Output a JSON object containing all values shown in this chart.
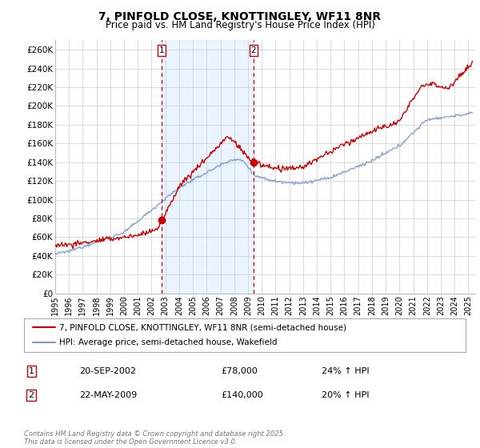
{
  "title": "7, PINFOLD CLOSE, KNOTTINGLEY, WF11 8NR",
  "subtitle": "Price paid vs. HM Land Registry's House Price Index (HPI)",
  "title_fontsize": 10,
  "subtitle_fontsize": 8.5,
  "bg_color": "#ffffff",
  "plot_bg_color": "#ffffff",
  "grid_color": "#cccccc",
  "red_line_color": "#cc0000",
  "blue_line_color": "#7799cc",
  "shade_color": "#ddeeff",
  "vline_color": "#cc0000",
  "marker1_x": 2002.72,
  "marker2_x": 2009.39,
  "marker1_y": 78000,
  "marker2_y": 140000,
  "marker1_label": "1",
  "marker2_label": "2",
  "ylim": [
    0,
    270000
  ],
  "xlim_start": 1995.0,
  "xlim_end": 2025.5,
  "legend_entry1": "7, PINFOLD CLOSE, KNOTTINGLEY, WF11 8NR (semi-detached house)",
  "legend_entry2": "HPI: Average price, semi-detached house, Wakefield",
  "table_row1": [
    "1",
    "20-SEP-2002",
    "£78,000",
    "24% ↑ HPI"
  ],
  "table_row2": [
    "2",
    "22-MAY-2009",
    "£140,000",
    "20% ↑ HPI"
  ],
  "footnote": "Contains HM Land Registry data © Crown copyright and database right 2025.\nThis data is licensed under the Open Government Licence v3.0.",
  "yticks": [
    0,
    20000,
    40000,
    60000,
    80000,
    100000,
    120000,
    140000,
    160000,
    180000,
    200000,
    220000,
    240000,
    260000
  ],
  "ytick_labels": [
    "£0",
    "£20K",
    "£40K",
    "£60K",
    "£80K",
    "£100K",
    "£120K",
    "£140K",
    "£160K",
    "£180K",
    "£200K",
    "£220K",
    "£240K",
    "£260K"
  ],
  "xticks": [
    1995,
    1996,
    1997,
    1998,
    1999,
    2000,
    2001,
    2002,
    2003,
    2004,
    2005,
    2006,
    2007,
    2008,
    2009,
    2010,
    2011,
    2012,
    2013,
    2014,
    2015,
    2016,
    2017,
    2018,
    2019,
    2020,
    2021,
    2022,
    2023,
    2024,
    2025
  ],
  "vline1_x": 2002.72,
  "vline2_x": 2009.39
}
